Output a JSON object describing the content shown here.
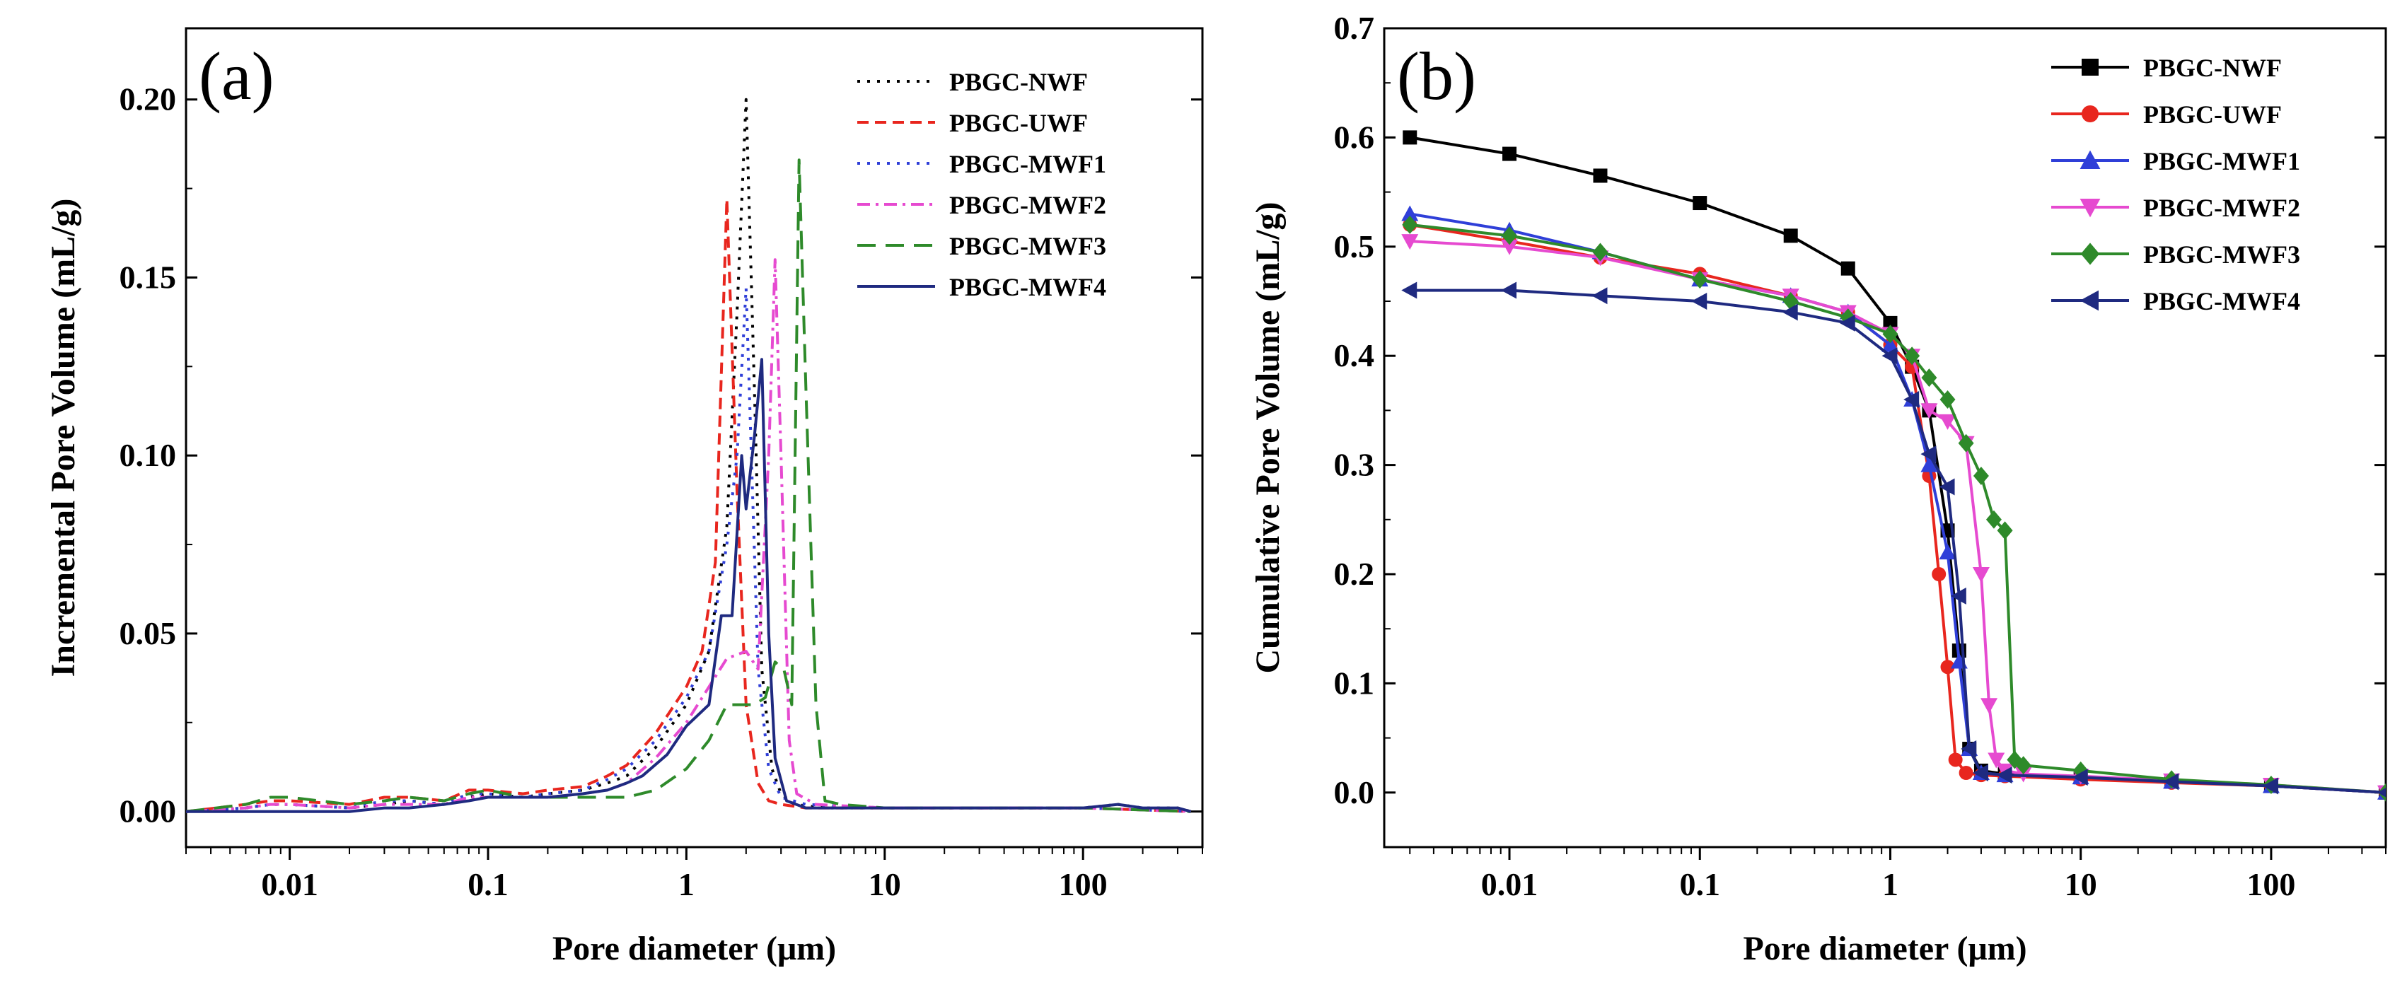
{
  "chart_data": [
    {
      "panel": "(a)",
      "type": "line",
      "xlabel": "Pore diameter (μm)",
      "ylabel": "Incremental Pore Volume  (mL/g)",
      "xscale": "log",
      "xlim": [
        0.003,
        400
      ],
      "ylim": [
        -0.01,
        0.22
      ],
      "xticks": [
        0.01,
        0.1,
        1,
        10,
        100
      ],
      "xtick_labels": [
        "0.01",
        "0.1",
        "1",
        "10",
        "100"
      ],
      "yticks": [
        0.0,
        0.05,
        0.1,
        0.15,
        0.2
      ],
      "ytick_labels": [
        "0.00",
        "0.05",
        "0.10",
        "0.15",
        "0.20"
      ],
      "legend_position": "top-right",
      "series": [
        {
          "name": "PBGC-NWF",
          "color": "#000000",
          "dash": "dot",
          "x": [
            0.003,
            0.006,
            0.008,
            0.01,
            0.02,
            0.03,
            0.04,
            0.06,
            0.08,
            0.1,
            0.15,
            0.2,
            0.3,
            0.4,
            0.5,
            0.7,
            1.0,
            1.3,
            1.6,
            1.8,
            2.0,
            2.2,
            2.4,
            2.7,
            3.0,
            3.5,
            5,
            10,
            30,
            100,
            150,
            200,
            300,
            350
          ],
          "y": [
            0,
            0.001,
            0.002,
            0.002,
            0.001,
            0.002,
            0.003,
            0.002,
            0.004,
            0.005,
            0.004,
            0.005,
            0.006,
            0.008,
            0.01,
            0.018,
            0.03,
            0.045,
            0.08,
            0.14,
            0.2,
            0.12,
            0.04,
            0.012,
            0.005,
            0.002,
            0.001,
            0.001,
            0.001,
            0.001,
            0.002,
            0.001,
            0.001,
            0
          ]
        },
        {
          "name": "PBGC-UWF",
          "color": "#e8261e",
          "dash": "dash",
          "x": [
            0.003,
            0.006,
            0.008,
            0.01,
            0.02,
            0.03,
            0.04,
            0.06,
            0.08,
            0.1,
            0.15,
            0.2,
            0.3,
            0.4,
            0.5,
            0.7,
            1.0,
            1.2,
            1.4,
            1.6,
            1.8,
            2.0,
            2.3,
            2.6,
            3.0,
            4,
            10,
            100,
            350
          ],
          "y": [
            0,
            0.002,
            0.003,
            0.003,
            0.002,
            0.004,
            0.004,
            0.003,
            0.006,
            0.006,
            0.005,
            0.006,
            0.007,
            0.01,
            0.013,
            0.022,
            0.035,
            0.045,
            0.07,
            0.172,
            0.09,
            0.03,
            0.008,
            0.003,
            0.002,
            0.001,
            0.001,
            0.001,
            0
          ]
        },
        {
          "name": "PBGC-MWF1",
          "color": "#2f3fd8",
          "dash": "dot",
          "x": [
            0.003,
            0.006,
            0.008,
            0.01,
            0.02,
            0.03,
            0.04,
            0.06,
            0.08,
            0.1,
            0.15,
            0.2,
            0.3,
            0.4,
            0.5,
            0.7,
            1.0,
            1.3,
            1.6,
            1.8,
            2.0,
            2.1,
            2.3,
            2.6,
            3.0,
            4,
            10,
            100,
            350
          ],
          "y": [
            0,
            0.001,
            0.002,
            0.002,
            0.001,
            0.003,
            0.003,
            0.002,
            0.005,
            0.005,
            0.004,
            0.005,
            0.006,
            0.009,
            0.012,
            0.02,
            0.032,
            0.045,
            0.075,
            0.1,
            0.147,
            0.11,
            0.04,
            0.012,
            0.004,
            0.002,
            0.001,
            0.001,
            0
          ]
        },
        {
          "name": "PBGC-MWF2",
          "color": "#e64ad0",
          "dash": "dashdot",
          "x": [
            0.003,
            0.006,
            0.008,
            0.01,
            0.02,
            0.03,
            0.04,
            0.06,
            0.08,
            0.1,
            0.15,
            0.2,
            0.3,
            0.4,
            0.5,
            0.7,
            1.0,
            1.3,
            1.6,
            2.0,
            2.3,
            2.6,
            2.8,
            3.0,
            3.3,
            3.6,
            4.5,
            10,
            100,
            350
          ],
          "y": [
            0,
            0.001,
            0.002,
            0.002,
            0.001,
            0.002,
            0.002,
            0.002,
            0.004,
            0.004,
            0.004,
            0.004,
            0.005,
            0.006,
            0.008,
            0.015,
            0.025,
            0.035,
            0.043,
            0.045,
            0.04,
            0.1,
            0.155,
            0.1,
            0.02,
            0.005,
            0.002,
            0.001,
            0.001,
            0
          ]
        },
        {
          "name": "PBGC-MWF3",
          "color": "#2e8a2a",
          "dash": "longdash",
          "x": [
            0.003,
            0.006,
            0.008,
            0.01,
            0.02,
            0.03,
            0.04,
            0.06,
            0.08,
            0.1,
            0.15,
            0.2,
            0.3,
            0.4,
            0.5,
            0.7,
            1.0,
            1.3,
            1.6,
            1.9,
            2.2,
            2.5,
            2.8,
            3.1,
            3.4,
            3.7,
            4.0,
            4.5,
            5.0,
            6,
            10,
            100,
            350
          ],
          "y": [
            0,
            0.002,
            0.004,
            0.004,
            0.002,
            0.003,
            0.004,
            0.003,
            0.005,
            0.006,
            0.004,
            0.004,
            0.004,
            0.004,
            0.004,
            0.006,
            0.012,
            0.02,
            0.03,
            0.03,
            0.03,
            0.032,
            0.042,
            0.04,
            0.03,
            0.183,
            0.12,
            0.03,
            0.003,
            0.002,
            0.001,
            0.001,
            0
          ]
        },
        {
          "name": "PBGC-MWF4",
          "color": "#1f2a80",
          "dash": "solid",
          "x": [
            0.003,
            0.006,
            0.008,
            0.01,
            0.02,
            0.03,
            0.04,
            0.06,
            0.08,
            0.1,
            0.15,
            0.2,
            0.3,
            0.4,
            0.5,
            0.6,
            0.8,
            1.0,
            1.3,
            1.5,
            1.7,
            1.9,
            2.0,
            2.2,
            2.4,
            2.6,
            2.8,
            3.2,
            4,
            10,
            100,
            150,
            200,
            300,
            350
          ],
          "y": [
            0,
            0,
            0,
            0,
            0,
            0.001,
            0.001,
            0.002,
            0.003,
            0.004,
            0.004,
            0.004,
            0.005,
            0.006,
            0.008,
            0.01,
            0.016,
            0.024,
            0.03,
            0.055,
            0.055,
            0.1,
            0.085,
            0.105,
            0.127,
            0.05,
            0.015,
            0.003,
            0.001,
            0.001,
            0.001,
            0.002,
            0.001,
            0.001,
            0
          ]
        }
      ]
    },
    {
      "panel": "(b)",
      "type": "line",
      "xlabel": "Pore diameter (μm)",
      "ylabel": "Cumulative Pore Volume  (mL/g)",
      "xscale": "log",
      "xlim": [
        0.0022,
        400
      ],
      "ylim": [
        -0.05,
        0.7
      ],
      "xticks": [
        0.01,
        0.1,
        1,
        10,
        100
      ],
      "xtick_labels": [
        "0.01",
        "0.1",
        "1",
        "10",
        "100"
      ],
      "yticks": [
        0.0,
        0.1,
        0.2,
        0.3,
        0.4,
        0.5,
        0.6,
        0.7
      ],
      "ytick_labels": [
        "0.0",
        "0.1",
        "0.2",
        "0.3",
        "0.4",
        "0.5",
        "0.6",
        "0.7"
      ],
      "legend_position": "top-right",
      "series": [
        {
          "name": "PBGC-NWF",
          "color": "#000000",
          "marker": "square",
          "x": [
            0.003,
            0.01,
            0.03,
            0.1,
            0.3,
            0.6,
            1.0,
            1.3,
            1.6,
            2.0,
            2.3,
            2.6,
            3.0,
            4,
            10,
            30,
            100,
            400
          ],
          "y": [
            0.6,
            0.585,
            0.565,
            0.54,
            0.51,
            0.48,
            0.43,
            0.39,
            0.35,
            0.24,
            0.13,
            0.04,
            0.02,
            0.017,
            0.014,
            0.01,
            0.006,
            0.0
          ]
        },
        {
          "name": "PBGC-UWF",
          "color": "#e8261e",
          "marker": "circle",
          "x": [
            0.003,
            0.01,
            0.03,
            0.1,
            0.3,
            0.6,
            1.0,
            1.3,
            1.6,
            1.8,
            2.0,
            2.2,
            2.5,
            3.0,
            4,
            10,
            30,
            100,
            400
          ],
          "y": [
            0.52,
            0.505,
            0.49,
            0.475,
            0.455,
            0.44,
            0.41,
            0.39,
            0.29,
            0.2,
            0.115,
            0.03,
            0.018,
            0.016,
            0.015,
            0.012,
            0.009,
            0.006,
            0.0
          ]
        },
        {
          "name": "PBGC-MWF1",
          "color": "#2f3fd8",
          "marker": "triangle-up",
          "x": [
            0.003,
            0.01,
            0.03,
            0.1,
            0.3,
            0.6,
            1.0,
            1.3,
            1.6,
            2.0,
            2.3,
            2.6,
            3.0,
            4,
            10,
            30,
            100,
            400
          ],
          "y": [
            0.53,
            0.515,
            0.495,
            0.47,
            0.455,
            0.44,
            0.41,
            0.36,
            0.3,
            0.22,
            0.12,
            0.04,
            0.018,
            0.016,
            0.014,
            0.01,
            0.006,
            0.0
          ]
        },
        {
          "name": "PBGC-MWF2",
          "color": "#e64ad0",
          "marker": "triangle-down",
          "x": [
            0.003,
            0.01,
            0.03,
            0.1,
            0.3,
            0.6,
            1.0,
            1.3,
            1.6,
            2.0,
            2.5,
            3.0,
            3.3,
            3.6,
            4.0,
            5,
            10,
            30,
            100,
            400
          ],
          "y": [
            0.505,
            0.5,
            0.49,
            0.47,
            0.455,
            0.44,
            0.42,
            0.4,
            0.35,
            0.34,
            0.32,
            0.2,
            0.08,
            0.03,
            0.02,
            0.017,
            0.015,
            0.011,
            0.007,
            0.0
          ]
        },
        {
          "name": "PBGC-MWF3",
          "color": "#2e8a2a",
          "marker": "diamond",
          "x": [
            0.003,
            0.01,
            0.03,
            0.1,
            0.3,
            0.6,
            1.0,
            1.3,
            1.6,
            2.0,
            2.5,
            3.0,
            3.5,
            4.0,
            4.5,
            5,
            10,
            30,
            100,
            400
          ],
          "y": [
            0.52,
            0.51,
            0.495,
            0.47,
            0.45,
            0.435,
            0.42,
            0.4,
            0.38,
            0.36,
            0.32,
            0.29,
            0.25,
            0.24,
            0.03,
            0.025,
            0.02,
            0.012,
            0.007,
            0.0
          ]
        },
        {
          "name": "PBGC-MWF4",
          "color": "#1f2a80",
          "marker": "triangle-left",
          "x": [
            0.003,
            0.01,
            0.03,
            0.1,
            0.3,
            0.6,
            1.0,
            1.3,
            1.6,
            2.0,
            2.3,
            2.6,
            3.0,
            4,
            10,
            30,
            100,
            400
          ],
          "y": [
            0.46,
            0.46,
            0.455,
            0.45,
            0.44,
            0.43,
            0.4,
            0.36,
            0.31,
            0.28,
            0.18,
            0.04,
            0.018,
            0.016,
            0.014,
            0.01,
            0.006,
            0.0
          ]
        }
      ]
    }
  ]
}
